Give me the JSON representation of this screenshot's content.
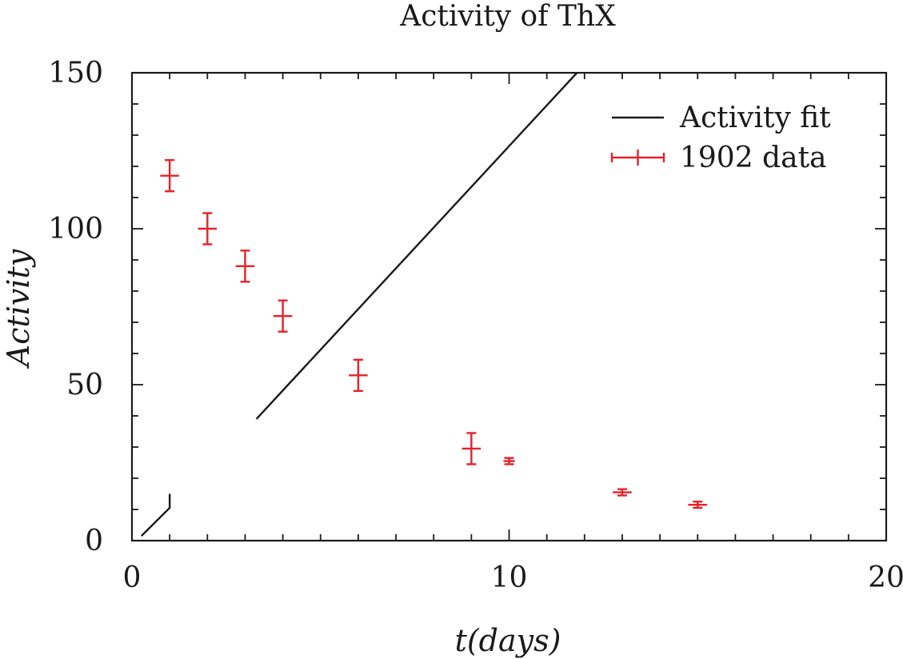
{
  "chart_data": {
    "type": "scatter",
    "title": "Activity of ThX",
    "xlabel": "t(days)",
    "ylabel": "Activity",
    "xlim": [
      0,
      20
    ],
    "ylim": [
      0,
      150
    ],
    "xticks": [
      "0",
      "10",
      "20"
    ],
    "yticks": [
      "0",
      "50",
      "100",
      "150"
    ],
    "grid": false,
    "legend_position": "top-right",
    "series": [
      {
        "name": "Activity fit",
        "kind": "line",
        "color": "#1a1a1a",
        "segments": [
          [
            [
              0.25,
              1.5
            ],
            [
              1.0,
              10.5
            ],
            [
              1.0,
              15.0
            ]
          ],
          [
            [
              3.3,
              39.0
            ],
            [
              11.8,
              150.0
            ]
          ]
        ]
      },
      {
        "name": "1902 data",
        "kind": "errorbar",
        "color": "#e8202a",
        "x": [
          1,
          2,
          3,
          4,
          6,
          9,
          10,
          13,
          15
        ],
        "y": [
          117,
          100,
          88,
          72,
          53,
          29.5,
          25.5,
          15.5,
          11.5
        ],
        "yerr": [
          5,
          5,
          5,
          5,
          5,
          5,
          1,
          1,
          1
        ],
        "xerr": [
          0.25,
          0.25,
          0.25,
          0.25,
          0.25,
          0.25,
          0.15,
          0.25,
          0.25
        ]
      }
    ]
  }
}
